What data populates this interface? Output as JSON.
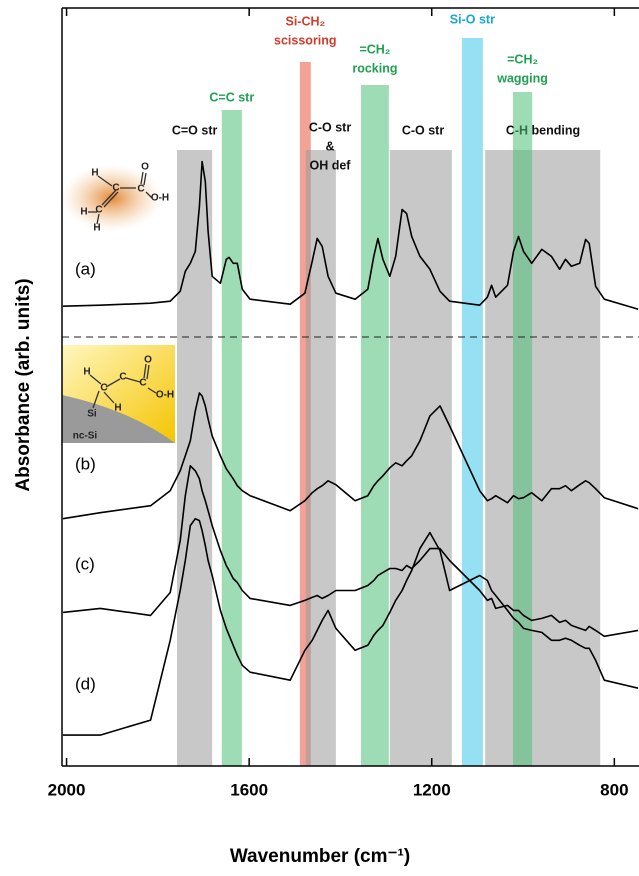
{
  "chart_data": {
    "type": "line",
    "x_label": "Wavenumber (cm⁻¹)",
    "y_label": "Absorbance (arb. units)",
    "xlim": [
      2010,
      746
    ],
    "ylim": [
      0,
      760
    ],
    "xticks": [
      2000,
      1600,
      1200,
      800
    ],
    "x": [
      2008,
      1926,
      1816,
      1773,
      1751,
      1740,
      1729,
      1718,
      1709,
      1703,
      1696,
      1690,
      1681,
      1663,
      1650,
      1644,
      1635,
      1626,
      1615,
      1598,
      1510,
      1478,
      1462,
      1451,
      1440,
      1427,
      1410,
      1368,
      1340,
      1327,
      1318,
      1307,
      1292,
      1279,
      1265,
      1255,
      1244,
      1226,
      1204,
      1182,
      1161,
      1095,
      1078,
      1069,
      1060,
      1034,
      1021,
      1010,
      999,
      981,
      959,
      938,
      920,
      907,
      894,
      876,
      863,
      855,
      841,
      822,
      748
    ],
    "series": [
      {
        "name": "(a)",
        "color": "#000000",
        "values": [
          461,
          462,
          464,
          466,
          476,
          496,
          504,
          516,
          561,
          606,
          586,
          536,
          491,
          484,
          508,
          510,
          504,
          504,
          478,
          468,
          463,
          474,
          506,
          529,
          521,
          491,
          474,
          468,
          478,
          511,
          529,
          508,
          491,
          511,
          558,
          554,
          531,
          511,
          498,
          476,
          466,
          462,
          470,
          482,
          470,
          482,
          516,
          531,
          516,
          504,
          518,
          511,
          498,
          508,
          501,
          504,
          528,
          524,
          481,
          468,
          458
        ]
      },
      {
        "name": "(b)",
        "color": "#000000",
        "values": [
          248,
          254,
          261,
          276,
          296,
          311,
          326,
          356,
          374,
          371,
          361,
          348,
          331,
          311,
          298,
          294,
          288,
          281,
          276,
          271,
          256,
          266,
          274,
          278,
          281,
          286,
          282,
          266,
          271,
          281,
          286,
          291,
          299,
          304,
          301,
          306,
          311,
          326,
          351,
          361,
          341,
          276,
          266,
          268,
          271,
          264,
          271,
          268,
          269,
          274,
          266,
          278,
          278,
          281,
          276,
          282,
          286,
          284,
          278,
          269,
          258
        ]
      },
      {
        "name": "(c)",
        "color": "#000000",
        "values": [
          154,
          158,
          151,
          174,
          226,
          271,
          301,
          296,
          288,
          276,
          266,
          256,
          241,
          216,
          201,
          196,
          188,
          184,
          176,
          168,
          161,
          166,
          169,
          171,
          168,
          171,
          176,
          176,
          181,
          186,
          191,
          194,
          198,
          198,
          196,
          201,
          198,
          206,
          218,
          218,
          206,
          176,
          166,
          168,
          158,
          161,
          156,
          156,
          151,
          146,
          148,
          151,
          144,
          146,
          141,
          138,
          136,
          140,
          136,
          130,
          136
        ]
      },
      {
        "name": "(d)",
        "color": "#000000",
        "values": [
          31,
          31,
          46,
          126,
          176,
          206,
          241,
          248,
          246,
          236,
          221,
          206,
          191,
          156,
          138,
          131,
          121,
          111,
          101,
          94,
          86,
          116,
          126,
          136,
          146,
          156,
          138,
          116,
          121,
          131,
          136,
          141,
          154,
          166,
          176,
          186,
          196,
          218,
          234,
          216,
          176,
          191,
          186,
          176,
          171,
          156,
          148,
          144,
          138,
          136,
          134,
          126,
          126,
          128,
          126,
          121,
          118,
          118,
          106,
          86,
          78
        ]
      }
    ],
    "bands": [
      {
        "label": [
          "C=O str"
        ],
        "from": 1758,
        "to": 1681,
        "color": "#9a9a9a",
        "label_color": "#111111"
      },
      {
        "label": [
          "C=C str"
        ],
        "from": 1660,
        "to": 1616,
        "color": "#4fc07a",
        "label_color": "#1fa050"
      },
      {
        "label": [
          "Si-CH₂",
          "scissoring"
        ],
        "from": 1489,
        "to": 1465,
        "color": "#e8553f",
        "label_color": "#d23a2a"
      },
      {
        "label": [
          "C-O str",
          "&",
          "OH def"
        ],
        "from": 1476,
        "to": 1410,
        "color": "#9a9a9a",
        "label_color": "#111111"
      },
      {
        "label": [
          "=CH₂",
          "rocking"
        ],
        "from": 1355,
        "to": 1294,
        "color": "#4fc07a",
        "label_color": "#1fa050"
      },
      {
        "label": [
          "C-O str"
        ],
        "from": 1292,
        "to": 1156,
        "color": "#9a9a9a",
        "label_color": "#111111"
      },
      {
        "label": [
          "Si-O str"
        ],
        "from": 1134,
        "to": 1088,
        "color": "#3fc6ea",
        "label_color": "#18a6d8"
      },
      {
        "label": [
          "C-H  bending"
        ],
        "from": 1083,
        "to": 831,
        "color": "#9a9a9a",
        "label_color": "#111111"
      },
      {
        "label": [
          "=CH₂",
          "wagging"
        ],
        "from": 1022,
        "to": 980,
        "color": "#4fc07a",
        "label_color": "#1fa050"
      }
    ],
    "insets": [
      {
        "atoms": [
          "H",
          "C",
          "C",
          "C",
          "O",
          "O-H",
          "H",
          "H"
        ]
      },
      {
        "atoms": [
          "H",
          "C",
          "C",
          "C",
          "O",
          "O-H",
          "Si",
          "H",
          "nc-Si"
        ]
      }
    ]
  }
}
